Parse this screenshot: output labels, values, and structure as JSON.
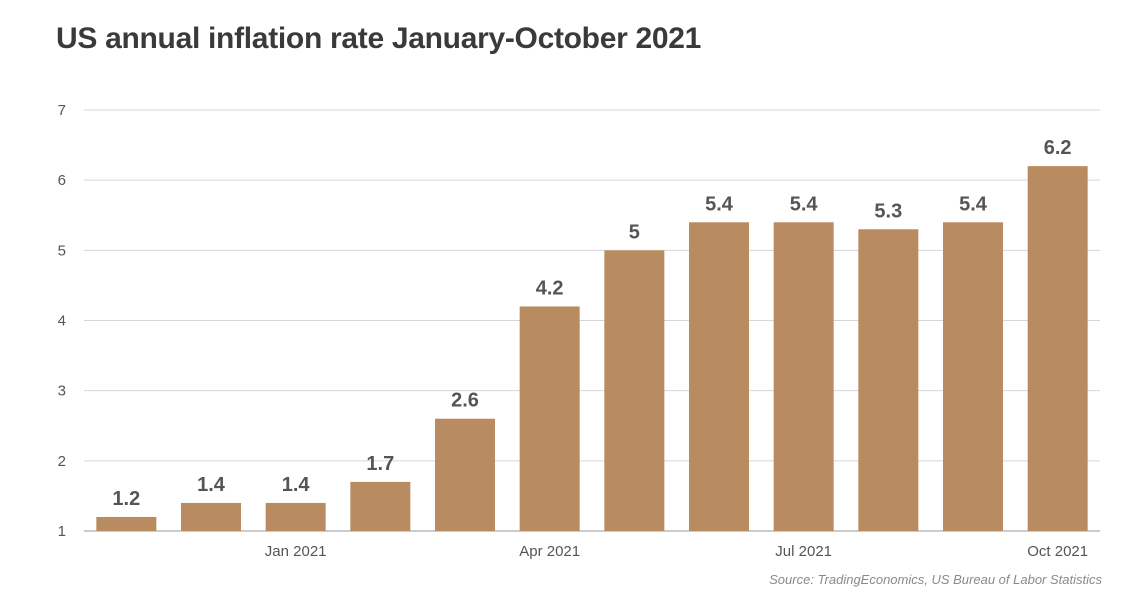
{
  "chart_data": {
    "type": "bar",
    "title": "US annual inflation rate January-October 2021",
    "categories": [
      "",
      "",
      "Jan 2021",
      "",
      "",
      "Apr 2021",
      "",
      "",
      "Jul 2021",
      "",
      "",
      "Oct 2021"
    ],
    "values": [
      1.2,
      1.4,
      1.4,
      1.7,
      2.6,
      4.2,
      5,
      5.4,
      5.4,
      5.3,
      5.4,
      6.2
    ],
    "value_labels": [
      "1.2",
      "1.4",
      "1.4",
      "1.7",
      "2.6",
      "4.2",
      "5",
      "5.4",
      "5.4",
      "5.3",
      "5.4",
      "6.2"
    ],
    "yticks": [
      "1",
      "2",
      "3",
      "4",
      "5",
      "6",
      "7"
    ],
    "ylim": [
      1,
      7
    ],
    "grid": true,
    "bar_color": "#b98b60"
  },
  "source": "Source: TradingEconomics, US Bureau of Labor Statistics"
}
